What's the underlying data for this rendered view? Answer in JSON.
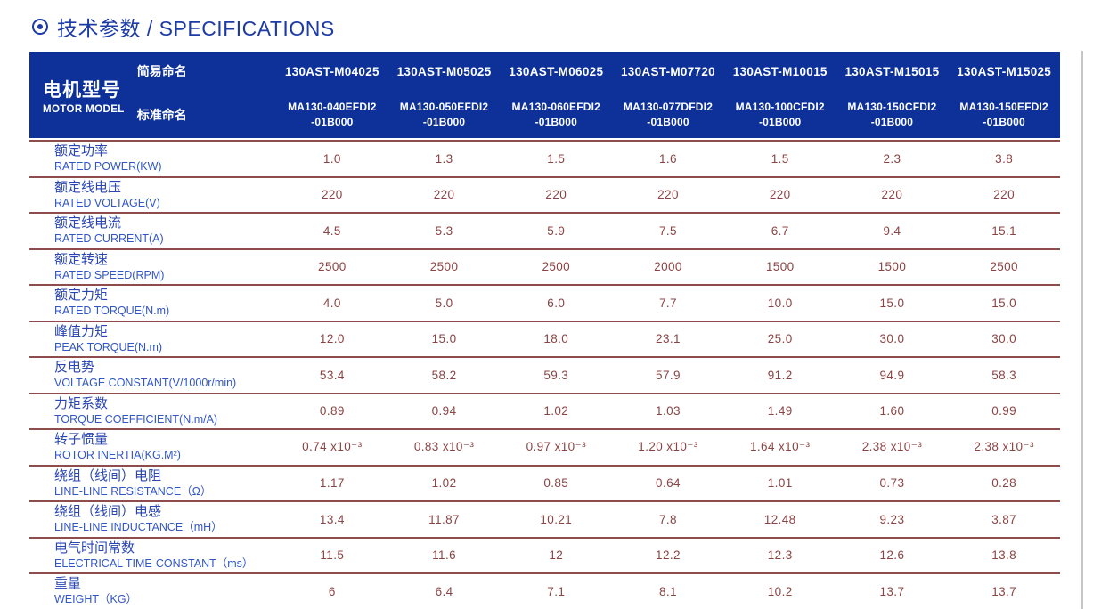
{
  "title": {
    "icon": "bullseye",
    "text": "技术参数 / SPECIFICATIONS"
  },
  "colors": {
    "header_bg": "#0d3199",
    "title_blue": "#1d3ba6",
    "label_zh_blue": "#2946b2",
    "label_en_blue": "#3156c6",
    "value_maroon": "#8b4343",
    "divider_maroon": "#8e4c4c"
  },
  "table": {
    "header": {
      "motor_model_zh": "电机型号",
      "motor_model_en": "MOTOR MODEL",
      "simple_name_label": "简易命名",
      "standard_name_label": "标准命名",
      "columns": [
        {
          "simple": "130AST-M04025",
          "std1": "MA130-040EFDI2",
          "std2": "-01B000"
        },
        {
          "simple": "130AST-M05025",
          "std1": "MA130-050EFDI2",
          "std2": "-01B000"
        },
        {
          "simple": "130AST-M06025",
          "std1": "MA130-060EFDI2",
          "std2": "-01B000"
        },
        {
          "simple": "130AST-M07720",
          "std1": "MA130-077DFDI2",
          "std2": "-01B000"
        },
        {
          "simple": "130AST-M10015",
          "std1": "MA130-100CFDI2",
          "std2": "-01B000"
        },
        {
          "simple": "130AST-M15015",
          "std1": "MA130-150CFDI2",
          "std2": "-01B000"
        },
        {
          "simple": "130AST-M15025",
          "std1": "MA130-150EFDI2",
          "std2": "-01B000"
        }
      ]
    },
    "rows": [
      {
        "zh": "额定功率",
        "en": "RATED POWER(KW)",
        "values": [
          "1.0",
          "1.3",
          "1.5",
          "1.6",
          "1.5",
          "2.3",
          "3.8"
        ]
      },
      {
        "zh": "额定线电压",
        "en": "RATED VOLTAGE(V)",
        "values": [
          "220",
          "220",
          "220",
          "220",
          "220",
          "220",
          "220"
        ]
      },
      {
        "zh": "额定线电流",
        "en": "RATED CURRENT(A)",
        "values": [
          "4.5",
          "5.3",
          "5.9",
          "7.5",
          "6.7",
          "9.4",
          "15.1"
        ]
      },
      {
        "zh": "额定转速",
        "en": "RATED SPEED(RPM)",
        "values": [
          "2500",
          "2500",
          "2500",
          "2000",
          "1500",
          "1500",
          "2500"
        ]
      },
      {
        "zh": "额定力矩",
        "en": "RATED TORQUE(N.m)",
        "values": [
          "4.0",
          "5.0",
          "6.0",
          "7.7",
          "10.0",
          "15.0",
          "15.0"
        ]
      },
      {
        "zh": "峰值力矩",
        "en": "PEAK TORQUE(N.m)",
        "values": [
          "12.0",
          "15.0",
          "18.0",
          "23.1",
          "25.0",
          "30.0",
          "30.0"
        ]
      },
      {
        "zh": "反电势",
        "en": "VOLTAGE CONSTANT(V/1000r/min)",
        "values": [
          "53.4",
          "58.2",
          "59.3",
          "57.9",
          "91.2",
          "94.9",
          "58.3"
        ]
      },
      {
        "zh": "力矩系数",
        "en": "TORQUE COEFFICIENT(N.m/A)",
        "values": [
          "0.89",
          "0.94",
          "1.02",
          "1.03",
          "1.49",
          "1.60",
          "0.99"
        ]
      },
      {
        "zh": "转子惯量",
        "en": "ROTOR INERTIA(KG.M²)",
        "values": [
          "0.74 x10⁻³",
          "0.83 x10⁻³",
          "0.97 x10⁻³",
          "1.20 x10⁻³",
          "1.64 x10⁻³",
          "2.38 x10⁻³",
          "2.38 x10⁻³"
        ]
      },
      {
        "zh": "绕组（线间）电阻",
        "en": "LINE-LINE RESISTANCE（Ω）",
        "values": [
          "1.17",
          "1.02",
          "0.85",
          "0.64",
          "1.01",
          "0.73",
          "0.28"
        ]
      },
      {
        "zh": "绕组（线间）电感",
        "en": "LINE-LINE INDUCTANCE（mH）",
        "values": [
          "13.4",
          "11.87",
          "10.21",
          "7.8",
          "12.48",
          "9.23",
          "3.87"
        ]
      },
      {
        "zh": "电气时间常数",
        "en": "ELECTRICAL TIME-CONSTANT（ms）",
        "values": [
          "11.5",
          "11.6",
          "12",
          "12.2",
          "12.3",
          "12.6",
          "13.8"
        ]
      },
      {
        "zh": "重量",
        "en": "WEIGHT（KG）",
        "values": [
          "6",
          "6.4",
          "7.1",
          "8.1",
          "10.2",
          "13.7",
          "13.7"
        ]
      }
    ]
  }
}
